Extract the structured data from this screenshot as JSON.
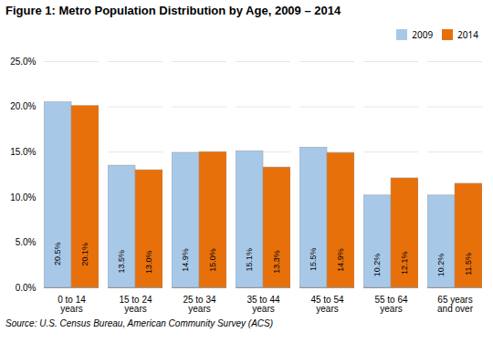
{
  "chart_data": {
    "type": "bar",
    "title": "Figure 1: Metro Population Distribution by Age, 2009 – 2014",
    "source": "Source: U.S. Census Bureau, American Community Survey (ACS)",
    "categories": [
      "0 to 14\nyears",
      "15 to 24\nyears",
      "25 to 34\nyears",
      "35 to 44\nyears",
      "45 to 54\nyears",
      "55 to 64\nyears",
      "65 years\nand over"
    ],
    "series": [
      {
        "name": "2009",
        "color": "#A8C8E8",
        "values": [
          20.5,
          13.5,
          14.9,
          15.1,
          15.5,
          10.2,
          10.2
        ],
        "value_labels": [
          "20.5%",
          "13.5%",
          "14.9%",
          "15.1%",
          "15.5%",
          "10.2%",
          "10.2%"
        ]
      },
      {
        "name": "2014",
        "color": "#E8700A",
        "values": [
          20.1,
          13.0,
          15.0,
          13.3,
          14.9,
          12.1,
          11.5
        ],
        "value_labels": [
          "20.1%",
          "13.0%",
          "15.0%",
          "13.3%",
          "14.9%",
          "12.1%",
          "11.5%"
        ]
      }
    ],
    "ylim": [
      0,
      25
    ],
    "yticks": [
      {
        "value": 0,
        "label": "0.0%"
      },
      {
        "value": 5,
        "label": "5.0%"
      },
      {
        "value": 10,
        "label": "10.0%"
      },
      {
        "value": 15,
        "label": "15.0%"
      },
      {
        "value": 20,
        "label": "20.0%"
      },
      {
        "value": 25,
        "label": "25.0%"
      }
    ],
    "grid": true,
    "legend": "upper right",
    "data_labels": true
  }
}
